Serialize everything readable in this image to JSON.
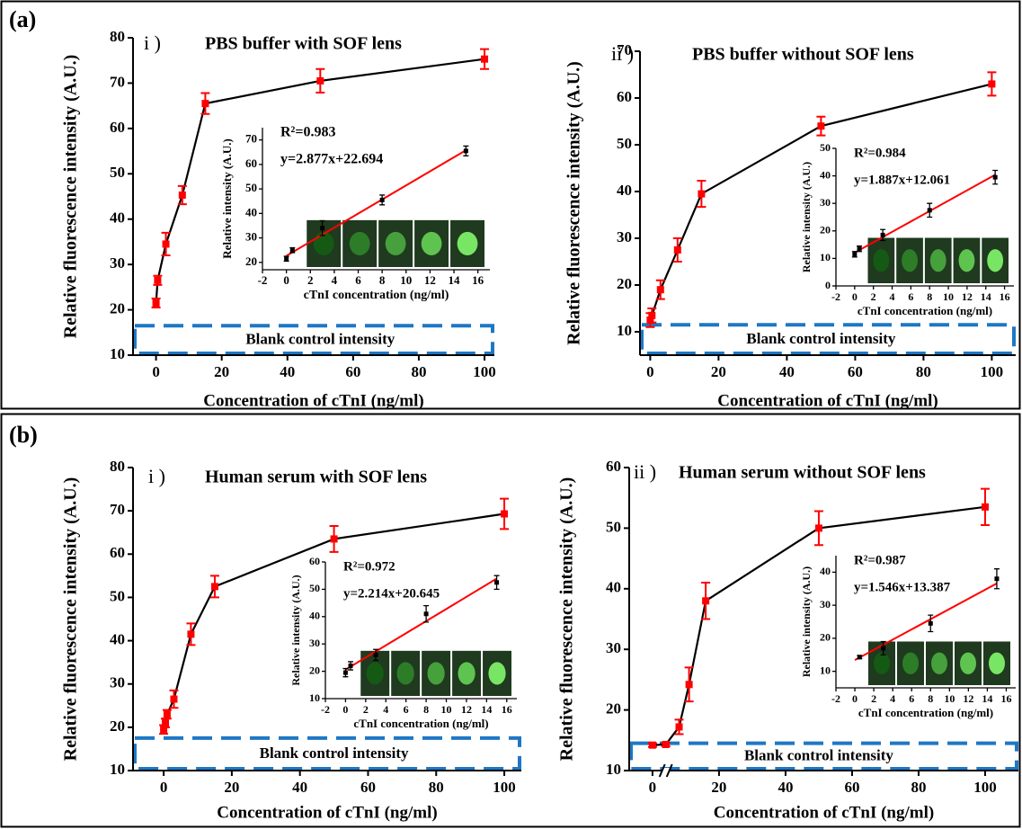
{
  "panel_labels": [
    "(a)",
    "(b)"
  ],
  "chart_data": [
    {
      "type": "line",
      "roman": "i )",
      "title": "PBS buffer with SOF lens",
      "x_label": "Concentration of cTnI (ng/ml)",
      "y_label": "Relative fluorescence intensity (A.U.)",
      "x": [
        0,
        0.5,
        3,
        8,
        15,
        50,
        100
      ],
      "values": [
        21.5,
        26.5,
        34.5,
        45.3,
        65.5,
        70.5,
        75.3
      ],
      "errors": [
        1,
        1,
        2.5,
        2,
        2.3,
        2.6,
        2.2
      ],
      "color": "#000000",
      "marker_color": "#ff0000",
      "xlim": [
        -7,
        103
      ],
      "xticks": [
        0,
        20,
        40,
        60,
        80,
        100
      ],
      "ylim": [
        10,
        80
      ],
      "yticks": [
        10,
        20,
        30,
        40,
        50,
        60,
        70,
        80
      ],
      "blank_control": {
        "label": "Blank control intensity",
        "range": [
          10,
          16.5
        ],
        "color": "#1f77c4"
      }
    },
    {
      "type": "scatter",
      "title": "R²=0.983",
      "equation": "y=2.877x+22.694",
      "x_label": "cTnI concentration (ng/ml)",
      "y_label": "Relative intensity (A.U.)",
      "x": [
        0,
        0.5,
        3,
        8,
        15
      ],
      "values": [
        21.5,
        25,
        34,
        45.5,
        65.5
      ],
      "errors": [
        1,
        1,
        3,
        2,
        2
      ],
      "marker_color": "#000000",
      "fit": {
        "x": [
          0,
          15
        ],
        "values": [
          22.7,
          65.8
        ],
        "color": "#ff0000"
      },
      "xlim": [
        -2,
        17
      ],
      "xticks": [
        -2,
        0,
        2,
        4,
        6,
        8,
        10,
        12,
        14,
        16
      ],
      "ylim": [
        17,
        75
      ],
      "yticks": [
        20,
        30,
        40,
        50,
        60,
        70
      ]
    },
    {
      "type": "line",
      "roman": "ii )",
      "title": "PBS buffer without SOF lens",
      "x_label": "Concentration of cTnI (ng/ml)",
      "y_label": "Relative fluorescence intensity (A.U.)",
      "x": [
        0,
        0.5,
        3,
        8,
        15,
        50,
        100
      ],
      "values": [
        12.5,
        13.5,
        19,
        27.5,
        39.5,
        54,
        63
      ],
      "errors": [
        1.5,
        1.5,
        2,
        2.5,
        2.8,
        2,
        2.5
      ],
      "color": "#000000",
      "marker_color": "#ff0000",
      "xlim": [
        -3,
        107
      ],
      "xticks": [
        0,
        20,
        40,
        60,
        80,
        100
      ],
      "ylim": [
        5,
        70
      ],
      "yticks": [
        10,
        20,
        30,
        40,
        50,
        60,
        70
      ],
      "blank_control": {
        "label": "Blank control intensity",
        "range": [
          5,
          11.5
        ],
        "color": "#1f77c4"
      }
    },
    {
      "type": "scatter",
      "title": "R²=0.984",
      "equation": "y=1.887x+12.061",
      "x_label": "cTnI concentration (ng/ml)",
      "y_label": "Relative intensity (A.U.)",
      "x": [
        0,
        0.5,
        3,
        8,
        15
      ],
      "values": [
        11.5,
        13.5,
        18.5,
        27.5,
        39.5
      ],
      "errors": [
        1,
        1,
        2,
        2.5,
        2.5
      ],
      "marker_color": "#000000",
      "fit": {
        "x": [
          0,
          15
        ],
        "values": [
          12.1,
          40.4
        ],
        "color": "#ff0000"
      },
      "xlim": [
        -2,
        17
      ],
      "xticks": [
        -2,
        0,
        2,
        4,
        6,
        8,
        10,
        12,
        14,
        16
      ],
      "ylim": [
        0,
        50
      ],
      "yticks": [
        0,
        10,
        20,
        30,
        40,
        50
      ]
    },
    {
      "type": "line",
      "roman": "i )",
      "title": "Human serum with SOF lens",
      "x_label": "Concentration of cTnI (ng/ml)",
      "y_label": "Relative fluorescence intensity (A.U.)",
      "x": [
        0,
        0.5,
        1,
        3,
        8,
        15,
        50,
        100
      ],
      "values": [
        19.5,
        21,
        23,
        26.5,
        41.5,
        52.5,
        63.5,
        69.3
      ],
      "errors": [
        1,
        1,
        1,
        2,
        2.5,
        2.5,
        3,
        3.5
      ],
      "color": "#000000",
      "marker_color": "#ff0000",
      "xlim": [
        -9,
        105
      ],
      "xticks": [
        0,
        20,
        40,
        60,
        80,
        100
      ],
      "ylim": [
        10,
        80
      ],
      "yticks": [
        10,
        20,
        30,
        40,
        50,
        60,
        70,
        80
      ],
      "blank_control": {
        "label": "Blank control intensity",
        "range": [
          10,
          17.5
        ],
        "color": "#1f77c4"
      }
    },
    {
      "type": "scatter",
      "title": "R²=0.972",
      "equation": "y=2.214x+20.645",
      "x_label": "cTnI concentration (ng/ml)",
      "y_label": "Relative intensity (A.U.)",
      "x": [
        0,
        0.5,
        3,
        8,
        15
      ],
      "values": [
        19.5,
        22,
        26,
        41,
        52.5
      ],
      "errors": [
        1.5,
        1.5,
        2,
        3,
        2.5
      ],
      "marker_color": "#000000",
      "fit": {
        "x": [
          0,
          15
        ],
        "values": [
          20.6,
          53.9
        ],
        "color": "#ff0000"
      },
      "xlim": [
        -2,
        17
      ],
      "xticks": [
        -2,
        0,
        2,
        4,
        6,
        8,
        10,
        12,
        14,
        16
      ],
      "ylim": [
        10,
        60
      ],
      "yticks": [
        10,
        20,
        30,
        40,
        50,
        60
      ]
    },
    {
      "type": "line",
      "roman": "ii )",
      "title": "Human serum without SOF lens",
      "axis_break": true,
      "x_label": "Concentration of cTnI (ng/ml)",
      "y_label": "Relative fluorescence intensity (A.U.)",
      "x": [
        0,
        4,
        8,
        11,
        16,
        50,
        100
      ],
      "values": [
        14.2,
        14.3,
        17.2,
        24.2,
        38,
        50,
        53.5
      ],
      "errors": [
        0.3,
        0.3,
        1.2,
        2.8,
        3,
        2.8,
        3
      ],
      "color": "#000000",
      "marker_color": "#ff0000",
      "xlim": [
        -7,
        110
      ],
      "xticks": [
        0,
        20,
        40,
        60,
        80,
        100
      ],
      "ylim": [
        10,
        60
      ],
      "yticks": [
        10,
        20,
        30,
        40,
        50,
        60
      ],
      "blank_control": {
        "label": "Blank control intensity",
        "range": [
          10,
          14.5
        ],
        "color": "#1f77c4"
      }
    },
    {
      "type": "scatter",
      "title": "R²=0.987",
      "equation": "y=1.546x+13.387",
      "x_label": "cTnI concentration (ng/ml)",
      "y_label": "Relative intensity (A.U.)",
      "x": [
        0.5,
        3,
        8,
        15
      ],
      "values": [
        14.3,
        17,
        24.5,
        38
      ],
      "errors": [
        0.5,
        2,
        2.5,
        3
      ],
      "marker_color": "#000000",
      "fit": {
        "x": [
          0,
          15
        ],
        "values": [
          13.4,
          36.6
        ],
        "color": "#ff0000"
      },
      "xlim": [
        -2,
        17
      ],
      "xticks": [
        -2,
        0,
        2,
        4,
        6,
        8,
        10,
        12,
        14,
        16
      ],
      "ylim": [
        5,
        45
      ],
      "yticks": [
        10,
        20,
        30,
        40
      ]
    }
  ]
}
